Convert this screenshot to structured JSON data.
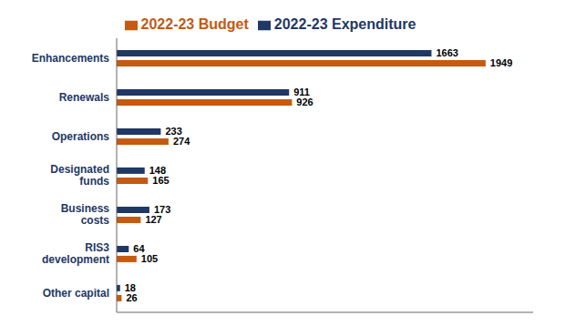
{
  "chart_data": {
    "type": "bar",
    "orientation": "horizontal",
    "categories": [
      "Other capital",
      "RIS3\ndevelopment",
      "Business\ncosts",
      "Designated\nfunds",
      "Operations",
      "Renewals",
      "Enhancements"
    ],
    "series": [
      {
        "name": "2022-23 Expenditure",
        "color": "#1f3864",
        "values": [
          18,
          64,
          173,
          148,
          233,
          911,
          1663
        ]
      },
      {
        "name": "2022-23 Budget",
        "color": "#c55a11",
        "values": [
          26,
          105,
          127,
          165,
          274,
          926,
          1949
        ]
      }
    ],
    "xlim": [
      0,
      2200
    ],
    "data_labels": true,
    "tick_labels": "y",
    "grid": false,
    "legend": "top"
  }
}
